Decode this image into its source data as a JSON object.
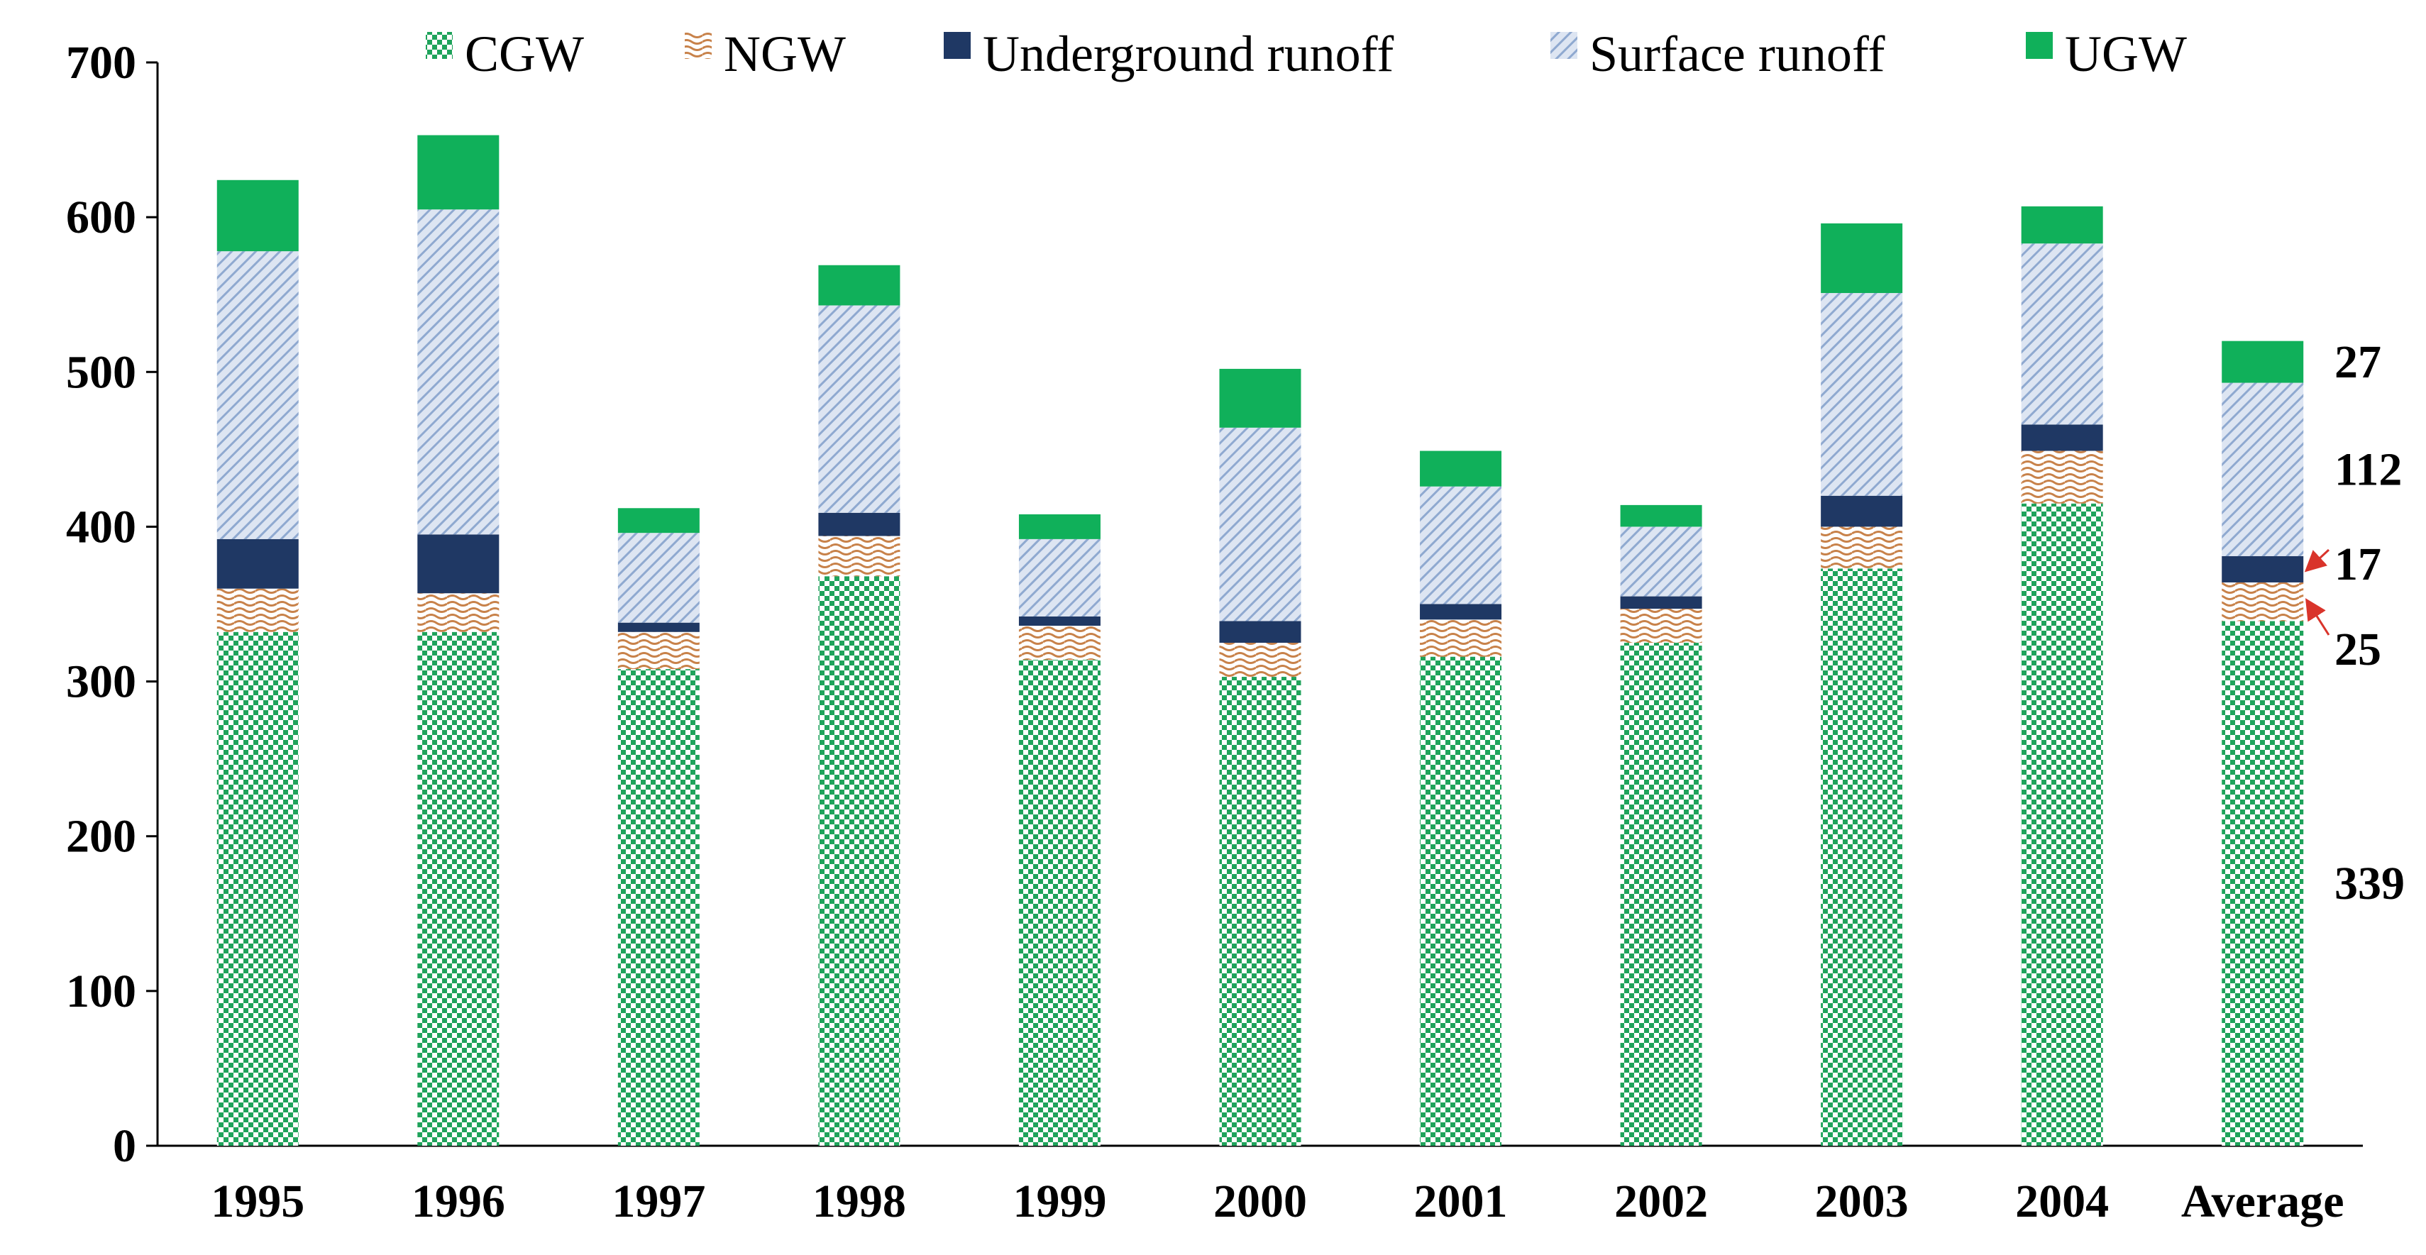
{
  "chart_data": {
    "type": "bar",
    "stacked": true,
    "categories": [
      "1995",
      "1996",
      "1997",
      "1998",
      "1999",
      "2000",
      "2001",
      "2002",
      "2003",
      "2004",
      "Average"
    ],
    "series": [
      {
        "name": "CGW",
        "pattern": "checker",
        "color": "#1fa35b",
        "values": [
          332,
          332,
          308,
          368,
          314,
          303,
          316,
          325,
          373,
          415,
          339
        ]
      },
      {
        "name": "NGW",
        "pattern": "wave",
        "color": "#c8824a",
        "values": [
          28,
          25,
          24,
          26,
          22,
          22,
          24,
          22,
          27,
          34,
          25
        ]
      },
      {
        "name": "Underground runoff",
        "pattern": "solid",
        "color": "#1f3864",
        "values": [
          32,
          38,
          6,
          15,
          6,
          14,
          10,
          8,
          20,
          17,
          17
        ]
      },
      {
        "name": "Surface runoff",
        "pattern": "diagonal",
        "color": "#8fa9d0",
        "values": [
          186,
          210,
          58,
          134,
          50,
          125,
          76,
          45,
          131,
          117,
          112
        ]
      },
      {
        "name": "UGW",
        "pattern": "solid",
        "color": "#10b05a",
        "values": [
          46,
          48,
          16,
          26,
          16,
          38,
          23,
          14,
          45,
          24,
          27
        ]
      }
    ],
    "ylim": [
      0,
      700
    ],
    "yticks": [
      0,
      100,
      200,
      300,
      400,
      500,
      600,
      700
    ],
    "legend_position": "top",
    "grid": false,
    "annotations": [
      {
        "text": "27",
        "series": "UGW",
        "category": "Average"
      },
      {
        "text": "112",
        "series": "Surface runoff",
        "category": "Average"
      },
      {
        "text": "17",
        "series": "Underground runoff",
        "category": "Average",
        "arrow": true
      },
      {
        "text": "25",
        "series": "NGW",
        "category": "Average",
        "arrow": true
      },
      {
        "text": "339",
        "series": "CGW",
        "category": "Average"
      }
    ]
  }
}
